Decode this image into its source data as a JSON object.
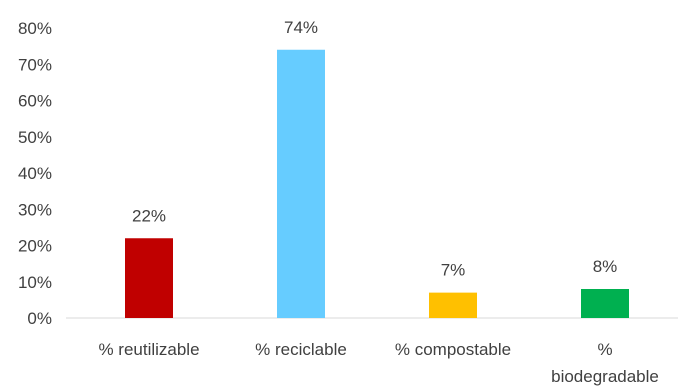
{
  "chart_data": {
    "type": "bar",
    "categories": [
      [
        "% reutilizable"
      ],
      [
        "% reciclable"
      ],
      [
        "% compostable"
      ],
      [
        "%",
        "biodegradable"
      ]
    ],
    "values": [
      22,
      74,
      7,
      8
    ],
    "value_labels": [
      "22%",
      "74%",
      "7%",
      "8%"
    ],
    "bar_colors": [
      "#c00000",
      "#66ccff",
      "#ffc000",
      "#00b050"
    ],
    "ylim": [
      0,
      80
    ],
    "yticks": [
      0,
      10,
      20,
      30,
      40,
      50,
      60,
      70,
      80
    ],
    "ytick_labels": [
      "0%",
      "10%",
      "20%",
      "30%",
      "40%",
      "50%",
      "60%",
      "70%",
      "80%"
    ],
    "grid": false,
    "title": "",
    "xlabel": "",
    "ylabel": ""
  }
}
